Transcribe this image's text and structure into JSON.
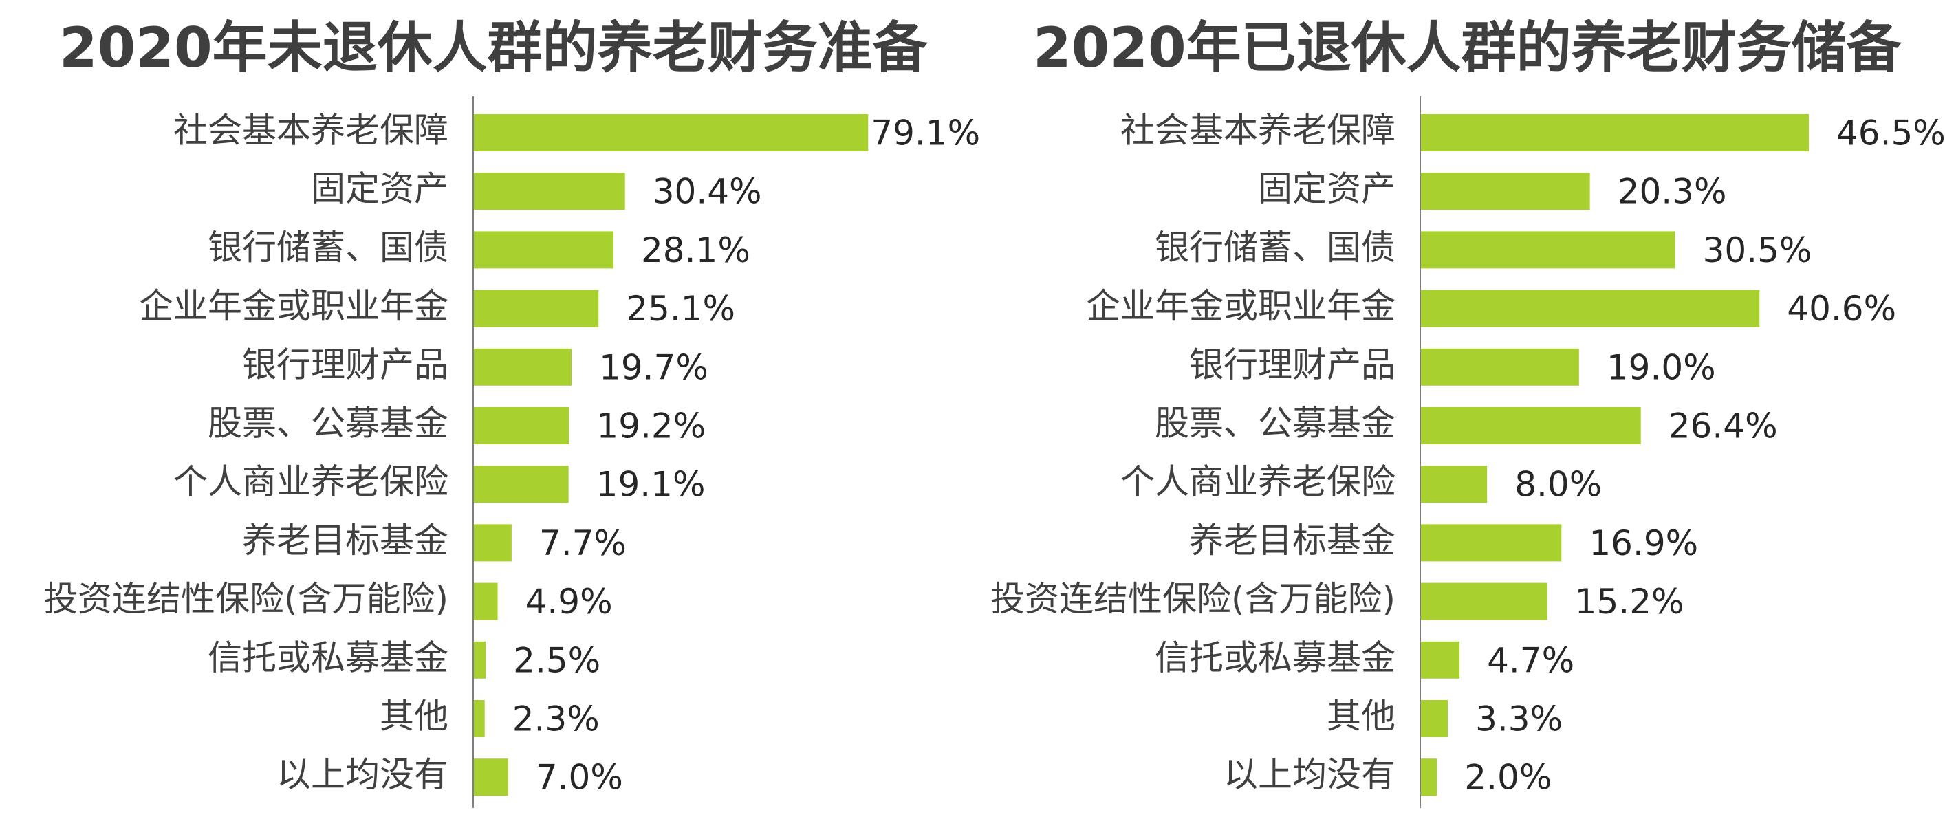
{
  "colors": {
    "bar": "#a8d02e",
    "axis": "#7f7f7f"
  },
  "chart_data": [
    {
      "type": "bar",
      "orientation": "horizontal",
      "title": "2020年未退休人群的养老财务准备",
      "categories": [
        "社会基本养老保障",
        "固定资产",
        "银行储蓄、国债",
        "企业年金或职业年金",
        "银行理财产品",
        "股票、公募基金",
        "个人商业养老保险",
        "养老目标基金",
        "投资连结性保险(含万能险)",
        "信托或私募基金",
        "其他",
        "以上均没有"
      ],
      "values": [
        79.1,
        30.4,
        28.1,
        25.1,
        19.7,
        19.2,
        19.1,
        7.7,
        4.9,
        2.5,
        2.3,
        7.0
      ],
      "value_labels": [
        "79.1%",
        "30.4%",
        "28.1%",
        "25.1%",
        "19.7%",
        "19.2%",
        "19.1%",
        "7.7%",
        "4.9%",
        "2.5%",
        "2.3%",
        "7.0%"
      ],
      "xlim": [
        0,
        100
      ],
      "grid": false,
      "unit": "%"
    },
    {
      "type": "bar",
      "orientation": "horizontal",
      "title": "2020年已退休人群的养老财务储备",
      "categories": [
        "社会基本养老保障",
        "固定资产",
        "银行储蓄、国债",
        "企业年金或职业年金",
        "银行理财产品",
        "股票、公募基金",
        "个人商业养老保险",
        "养老目标基金",
        "投资连结性保险(含万能险)",
        "信托或私募基金",
        "其他",
        "以上均没有"
      ],
      "values": [
        46.5,
        20.3,
        30.5,
        40.6,
        19.0,
        26.4,
        8.0,
        16.9,
        15.2,
        4.7,
        3.3,
        2.0
      ],
      "value_labels": [
        "46.5%",
        "20.3%",
        "30.5%",
        "40.6%",
        "19.0%",
        "26.4%",
        "8.0%",
        "16.9%",
        "15.2%",
        "4.7%",
        "3.3%",
        "2.0%"
      ],
      "xlim": [
        0,
        60
      ],
      "grid": false,
      "unit": "%"
    }
  ]
}
